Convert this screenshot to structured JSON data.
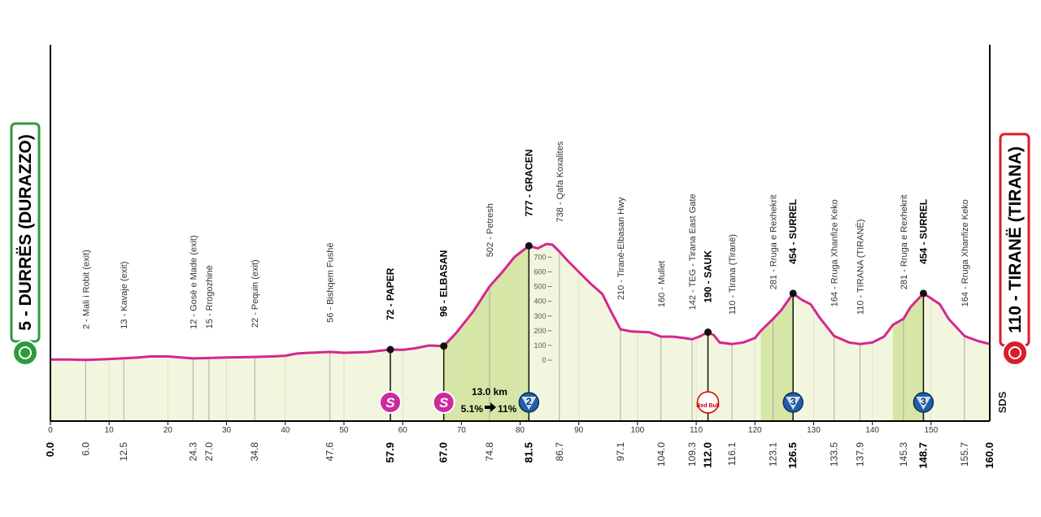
{
  "chart_data": {
    "type": "area",
    "x": [
      0,
      3,
      6,
      9,
      12.5,
      15,
      17,
      20,
      24.3,
      27,
      30,
      34.8,
      38,
      40,
      42,
      44,
      47.6,
      50,
      54,
      57.9,
      60,
      62,
      64.5,
      67,
      69,
      72,
      74.8,
      77,
      79,
      81.5,
      83,
      84.5,
      85.5,
      86.7,
      88,
      90,
      92,
      94,
      95.5,
      97.1,
      99,
      102,
      104,
      106,
      108,
      109.3,
      110.5,
      112,
      113,
      114,
      116.1,
      118,
      120,
      121,
      123.1,
      124.5,
      126.5,
      128,
      129.5,
      131,
      133.5,
      136,
      137.9,
      140,
      142,
      143.5,
      145.3,
      146.5,
      148.7,
      150,
      151.5,
      153,
      155.7,
      158,
      160
    ],
    "values": [
      5,
      5,
      2,
      6,
      13,
      18,
      25,
      25,
      12,
      15,
      18,
      22,
      26,
      30,
      45,
      50,
      56,
      50,
      55,
      72,
      70,
      80,
      100,
      96,
      180,
      330,
      502,
      600,
      700,
      777,
      760,
      790,
      785,
      738,
      680,
      600,
      520,
      450,
      330,
      210,
      195,
      190,
      160,
      160,
      150,
      142,
      160,
      190,
      170,
      120,
      110,
      120,
      150,
      200,
      281,
      340,
      454,
      410,
      380,
      290,
      164,
      120,
      110,
      120,
      160,
      240,
      281,
      360,
      454,
      420,
      380,
      280,
      164,
      130,
      110
    ],
    "color": "#d6268f",
    "fill": "#f3f6df",
    "climb_color": "#d6e6a6",
    "climb_areas": [
      [
        67,
        81.5
      ],
      [
        121,
        126.5
      ],
      [
        143.5,
        148.7
      ]
    ],
    "xlim": [
      0,
      160
    ],
    "xticks": [
      0,
      10,
      20,
      30,
      40,
      50,
      60,
      70,
      80,
      90,
      100,
      110,
      120,
      130,
      140,
      150
    ],
    "ylim": [
      -414,
      2144
    ],
    "yticks": [
      0,
      100,
      200,
      300,
      400,
      500,
      600,
      700
    ],
    "start": {
      "km": 0,
      "km_label": "0.0",
      "name": "5 - DURRËS (DURAZZO)"
    },
    "finish": {
      "km": 160,
      "km_label": "160.0",
      "name": "110 - TIRANË (TIRANA)"
    },
    "waypoints": [
      {
        "km": 6,
        "km_label": "6.0",
        "name": "2 - Mali i Robit (exit)"
      },
      {
        "km": 12.5,
        "km_label": "12.5",
        "name": "13 - Kavaje (exit)"
      },
      {
        "km": 24.3,
        "km_label": "24.3",
        "name": "12 - Gosë e Made (exit)"
      },
      {
        "km": 27,
        "km_label": "27.0",
        "name": "15 - Rrogozhinë"
      },
      {
        "km": 34.8,
        "km_label": "34.8",
        "name": "22 - Pequin (exit)"
      },
      {
        "km": 47.6,
        "km_label": "47.6",
        "name": "56 - Bishqem Fushë"
      },
      {
        "km": 57.9,
        "km_label": "57.9",
        "name": "72 - PAPER",
        "emphasis": true,
        "icon": {
          "kind": "sprint",
          "label": "S"
        }
      },
      {
        "km": 67,
        "km_label": "67.0",
        "name": "96 - ELBASAN",
        "emphasis": true,
        "icon": {
          "kind": "sprint",
          "label": "S"
        }
      },
      {
        "km": 74.8,
        "km_label": "74.8",
        "name": "502 - Petresh"
      },
      {
        "km": 81.5,
        "km_label": "81.5",
        "name": "777 - GRACEN",
        "emphasis": true,
        "icon": {
          "kind": "kom",
          "label": "2"
        }
      },
      {
        "km": 86.7,
        "km_label": "86.7",
        "name": "738 - Qafa Koxalites"
      },
      {
        "km": 97.1,
        "km_label": "97.1",
        "name": "210 - Tiranë-Elbasan Hwy"
      },
      {
        "km": 104,
        "km_label": "104.0",
        "name": "160 - Mullet"
      },
      {
        "km": 109.3,
        "km_label": "109.3",
        "name": "142 - TEG - Tirana East Gate"
      },
      {
        "km": 112,
        "km_label": "112.0",
        "name": "190 - SAUK",
        "emphasis": true,
        "icon": {
          "kind": "bonus",
          "label": "Red Bull"
        }
      },
      {
        "km": 116.1,
        "km_label": "116.1",
        "name": "110 - Tirana (Tiranë)"
      },
      {
        "km": 123.1,
        "km_label": "123.1",
        "name": "281 - Rruga e Rexhekrit"
      },
      {
        "km": 126.5,
        "km_label": "126.5",
        "name": "454 - SURREL",
        "emphasis": true,
        "icon": {
          "kind": "kom",
          "label": "3"
        }
      },
      {
        "km": 133.5,
        "km_label": "133.5",
        "name": "164 - Rruga Xhanfize Keko"
      },
      {
        "km": 137.9,
        "km_label": "137.9",
        "name": "110 - TIRANA (TIRANË)"
      },
      {
        "km": 145.3,
        "km_label": "145.3",
        "name": "281 - Rruga e Rexhekrit"
      },
      {
        "km": 148.7,
        "km_label": "148.7",
        "name": "454 - SURREL",
        "emphasis": true,
        "icon": {
          "kind": "kom",
          "label": "3"
        }
      },
      {
        "km": 155.7,
        "km_label": "155.7",
        "name": "164 - Rruga Xhanfize Keko"
      }
    ],
    "climb_note": {
      "length": "13.0 km",
      "avg": "5.1%",
      "max": "11%"
    },
    "logo": "SDS"
  }
}
